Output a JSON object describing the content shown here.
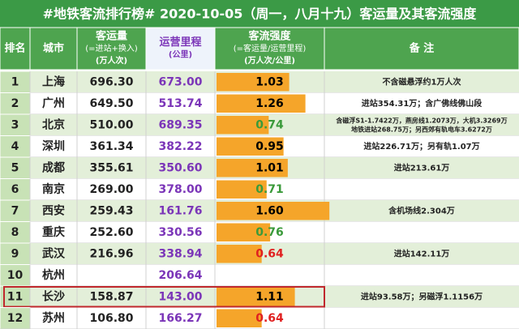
{
  "header": {
    "title": "#地铁客流排行榜# 2020-10-05（周一，八月十九）客运量及其客流强度"
  },
  "table": {
    "columns": [
      [
        "排名"
      ],
      [
        "城市"
      ],
      [
        "客运量",
        "(=进站+换入)",
        "(万人次)"
      ],
      [
        "运营里程",
        "(公里)"
      ],
      [
        "客流强度",
        "(=客运量/运营里程)",
        "(万人次/公里)"
      ],
      [
        "备  注"
      ]
    ],
    "highlight_row": 10,
    "bar_color": "#f5a52a",
    "rows": [
      {
        "rank": "1",
        "city": "上海",
        "volume": "696.30",
        "mileage": "673.00",
        "intensity": "1.03",
        "intensity_color": "#000000",
        "note": [
          "不含磁悬浮约1万人次"
        ]
      },
      {
        "rank": "2",
        "city": "广州",
        "volume": "649.50",
        "mileage": "513.74",
        "intensity": "1.26",
        "intensity_color": "#000000",
        "note": [
          "进站354.31万；含广佛线佛山段"
        ]
      },
      {
        "rank": "3",
        "city": "北京",
        "volume": "510.00",
        "mileage": "689.35",
        "intensity": "0.74",
        "intensity_color": "#3a9a3a",
        "note": [
          "含磁浮S1-1.7422万，燕房线1.2073万，大机3.3269万",
          "地铁进站268.75万；另西郊有轨电车3.6272万"
        ]
      },
      {
        "rank": "4",
        "city": "深圳",
        "volume": "361.34",
        "mileage": "382.22",
        "intensity": "0.95",
        "intensity_color": "#000000",
        "note": [
          "进站226.71万；另有轨1.07万"
        ]
      },
      {
        "rank": "5",
        "city": "成都",
        "volume": "355.61",
        "mileage": "350.60",
        "intensity": "1.01",
        "intensity_color": "#000000",
        "note": [
          "进站213.61万"
        ]
      },
      {
        "rank": "6",
        "city": "南京",
        "volume": "269.00",
        "mileage": "378.00",
        "intensity": "0.71",
        "intensity_color": "#3a9a3a",
        "note": null
      },
      {
        "rank": "7",
        "city": "西安",
        "volume": "259.43",
        "mileage": "161.76",
        "intensity": "1.60",
        "intensity_color": "#000000",
        "note": [
          "含机场线2.304万"
        ]
      },
      {
        "rank": "8",
        "city": "重庆",
        "volume": "252.60",
        "mileage": "330.56",
        "intensity": "0.76",
        "intensity_color": "#3a9a3a",
        "note": null
      },
      {
        "rank": "9",
        "city": "武汉",
        "volume": "216.96",
        "mileage": "338.94",
        "intensity": "0.64",
        "intensity_color": "#e02020",
        "note": [
          "进站142.11万"
        ]
      },
      {
        "rank": "10",
        "city": "杭州",
        "volume": null,
        "mileage": "206.64",
        "intensity": null,
        "intensity_color": "#000000",
        "note": null
      },
      {
        "rank": "11",
        "city": "长沙",
        "volume": "158.87",
        "mileage": "143.00",
        "intensity": "1.11",
        "intensity_color": "#000000",
        "note": [
          "进站93.58万；另磁浮1.1156万"
        ]
      },
      {
        "rank": "12",
        "city": "苏州",
        "volume": "106.80",
        "mileage": "166.27",
        "intensity": "0.64",
        "intensity_color": "#e02020",
        "note": null
      }
    ]
  }
}
